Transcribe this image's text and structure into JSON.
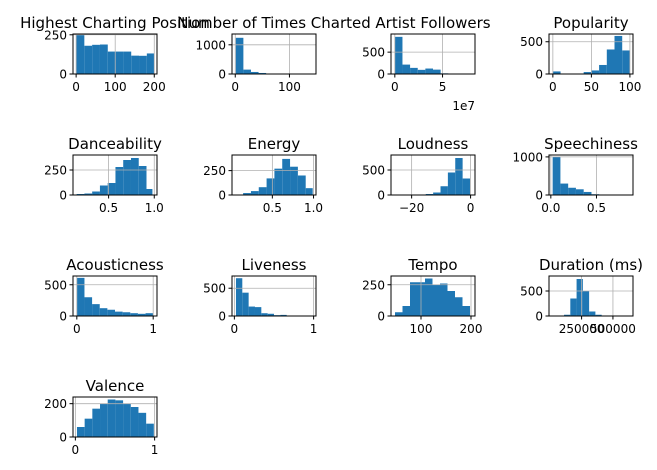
{
  "figure": {
    "background": "#ffffff"
  },
  "chart_data": [
    {
      "type": "bar",
      "title": "Highest Charting Position",
      "bar_color": "#1f77b4",
      "grid": true,
      "xlim": [
        -8,
        207
      ],
      "ylim": [
        0,
        255
      ],
      "xticks": [
        0,
        100,
        200
      ],
      "yticks": [
        0,
        250
      ],
      "bins": [
        [
          1,
          21,
          248
        ],
        [
          21,
          41,
          180
        ],
        [
          41,
          61,
          186
        ],
        [
          61,
          81,
          188
        ],
        [
          81,
          101,
          143
        ],
        [
          101,
          121,
          143
        ],
        [
          121,
          141,
          143
        ],
        [
          141,
          161,
          117
        ],
        [
          161,
          181,
          116
        ],
        [
          181,
          200,
          131
        ]
      ]
    },
    {
      "type": "bar",
      "title": "Number of Times Charted",
      "bar_color": "#1f77b4",
      "grid": true,
      "xlim": [
        -6,
        149
      ],
      "ylim": [
        0,
        1370
      ],
      "xticks": [
        0,
        100
      ],
      "yticks": [
        0,
        1000
      ],
      "bins": [
        [
          1,
          15,
          1240
        ],
        [
          15,
          29,
          150
        ],
        [
          29,
          43,
          70
        ],
        [
          43,
          57,
          35
        ],
        [
          57,
          71,
          15
        ],
        [
          71,
          85,
          5
        ],
        [
          85,
          99,
          3
        ],
        [
          99,
          113,
          2
        ],
        [
          113,
          127,
          1
        ],
        [
          127,
          142,
          2
        ]
      ]
    },
    {
      "type": "bar",
      "title": "Artist Followers",
      "bar_color": "#1f77b4",
      "grid": true,
      "xlim": [
        -0.4,
        8.4
      ],
      "ylim": [
        0,
        915
      ],
      "xticks": [
        0,
        5
      ],
      "yticks": [
        0,
        500
      ],
      "offset_text": "1e7",
      "bins": [
        [
          0,
          0.8,
          850
        ],
        [
          0.8,
          1.6,
          215
        ],
        [
          1.6,
          2.4,
          140
        ],
        [
          2.4,
          3.2,
          95
        ],
        [
          3.2,
          4.0,
          125
        ],
        [
          4.0,
          4.8,
          100
        ],
        [
          4.8,
          5.6,
          15
        ],
        [
          5.6,
          6.4,
          5
        ],
        [
          6.4,
          7.2,
          10
        ],
        [
          7.2,
          8.0,
          5
        ]
      ]
    },
    {
      "type": "bar",
      "title": "Popularity",
      "bar_color": "#1f77b4",
      "grid": true,
      "xlim": [
        -5,
        104
      ],
      "ylim": [
        0,
        620
      ],
      "xticks": [
        0,
        50,
        100
      ],
      "yticks": [
        0,
        500
      ],
      "bins": [
        [
          0,
          10,
          40
        ],
        [
          10,
          20,
          2
        ],
        [
          20,
          30,
          2
        ],
        [
          30,
          40,
          2
        ],
        [
          40,
          50,
          30
        ],
        [
          50,
          60,
          55
        ],
        [
          60,
          70,
          140
        ],
        [
          70,
          80,
          380
        ],
        [
          80,
          90,
          590
        ],
        [
          90,
          100,
          365
        ]
      ]
    },
    {
      "type": "bar",
      "title": "Danceability",
      "bar_color": "#1f77b4",
      "grid": true,
      "xlim": [
        0.11,
        1.03
      ],
      "ylim": [
        0,
        400
      ],
      "xticks": [
        0.5,
        1.0
      ],
      "xtick_labels": [
        "0.5",
        "1.0"
      ],
      "yticks": [
        0,
        250
      ],
      "bins": [
        [
          0.15,
          0.235,
          10
        ],
        [
          0.235,
          0.32,
          15
        ],
        [
          0.32,
          0.405,
          35
        ],
        [
          0.405,
          0.49,
          95
        ],
        [
          0.49,
          0.575,
          120
        ],
        [
          0.575,
          0.66,
          280
        ],
        [
          0.66,
          0.745,
          350
        ],
        [
          0.745,
          0.83,
          370
        ],
        [
          0.83,
          0.915,
          290
        ],
        [
          0.915,
          0.98,
          60
        ]
      ]
    },
    {
      "type": "bar",
      "title": "Energy",
      "bar_color": "#1f77b4",
      "grid": true,
      "xlim": [
        0.01,
        1.03
      ],
      "ylim": [
        0,
        410
      ],
      "xticks": [
        0.5,
        1.0
      ],
      "xtick_labels": [
        "0.5",
        "1.0"
      ],
      "yticks": [
        0,
        250
      ],
      "bins": [
        [
          0.05,
          0.145,
          5
        ],
        [
          0.145,
          0.24,
          20
        ],
        [
          0.24,
          0.335,
          40
        ],
        [
          0.335,
          0.43,
          80
        ],
        [
          0.43,
          0.525,
          170
        ],
        [
          0.525,
          0.62,
          270
        ],
        [
          0.62,
          0.715,
          370
        ],
        [
          0.715,
          0.81,
          290
        ],
        [
          0.81,
          0.905,
          200
        ],
        [
          0.905,
          0.99,
          70
        ]
      ]
    },
    {
      "type": "bar",
      "title": "Loudness",
      "bar_color": "#1f77b4",
      "grid": true,
      "xlim": [
        -27,
        1.5
      ],
      "ylim": [
        0,
        800
      ],
      "xticks": [
        -20,
        0
      ],
      "xtick_labels": [
        "−20",
        "0"
      ],
      "yticks": [
        0,
        500
      ],
      "bins": [
        [
          -25.2,
          -22.7,
          5
        ],
        [
          -22.7,
          -20.2,
          5
        ],
        [
          -20.2,
          -17.7,
          5
        ],
        [
          -17.7,
          -15.2,
          10
        ],
        [
          -15.2,
          -12.7,
          20
        ],
        [
          -12.7,
          -10.2,
          50
        ],
        [
          -10.2,
          -7.7,
          175
        ],
        [
          -7.7,
          -5.2,
          450
        ],
        [
          -5.2,
          -2.7,
          740
        ],
        [
          -2.7,
          -0.2,
          330
        ]
      ]
    },
    {
      "type": "bar",
      "title": "Speechiness",
      "bar_color": "#1f77b4",
      "grid": true,
      "xlim": [
        -0.02,
        0.9
      ],
      "ylim": [
        0,
        1050
      ],
      "xticks": [
        0.0,
        0.5
      ],
      "xtick_labels": [
        "0.0",
        "0.5"
      ],
      "yticks": [
        0,
        1000
      ],
      "bins": [
        [
          0.02,
          0.105,
          1000
        ],
        [
          0.105,
          0.19,
          300
        ],
        [
          0.19,
          0.275,
          190
        ],
        [
          0.275,
          0.36,
          150
        ],
        [
          0.36,
          0.445,
          80
        ],
        [
          0.445,
          0.53,
          20
        ],
        [
          0.53,
          0.615,
          8
        ],
        [
          0.615,
          0.7,
          3
        ],
        [
          0.7,
          0.785,
          2
        ],
        [
          0.785,
          0.87,
          1
        ]
      ]
    },
    {
      "type": "bar",
      "title": "Acousticness",
      "bar_color": "#1f77b4",
      "grid": true,
      "xlim": [
        -0.05,
        1.05
      ],
      "ylim": [
        0,
        640
      ],
      "xticks": [
        0,
        1
      ],
      "yticks": [
        0,
        500
      ],
      "bins": [
        [
          0.0,
          0.1,
          610
        ],
        [
          0.1,
          0.2,
          300
        ],
        [
          0.2,
          0.3,
          190
        ],
        [
          0.3,
          0.4,
          125
        ],
        [
          0.4,
          0.5,
          100
        ],
        [
          0.5,
          0.6,
          70
        ],
        [
          0.6,
          0.7,
          60
        ],
        [
          0.7,
          0.8,
          45
        ],
        [
          0.8,
          0.9,
          35
        ],
        [
          0.9,
          1.0,
          45
        ]
      ]
    },
    {
      "type": "bar",
      "title": "Liveness",
      "bar_color": "#1f77b4",
      "grid": true,
      "xlim": [
        -0.03,
        1.03
      ],
      "ylim": [
        0,
        720
      ],
      "xticks": [
        0,
        1
      ],
      "yticks": [
        0,
        500
      ],
      "bins": [
        [
          0.02,
          0.1,
          680
        ],
        [
          0.1,
          0.18,
          420
        ],
        [
          0.18,
          0.26,
          170
        ],
        [
          0.26,
          0.34,
          160
        ],
        [
          0.34,
          0.42,
          50
        ],
        [
          0.42,
          0.5,
          40
        ],
        [
          0.5,
          0.58,
          15
        ],
        [
          0.58,
          0.66,
          20
        ],
        [
          0.66,
          0.74,
          5
        ],
        [
          0.74,
          0.82,
          3
        ]
      ]
    },
    {
      "type": "bar",
      "title": "Tempo",
      "bar_color": "#1f77b4",
      "grid": true,
      "xlim": [
        40,
        208
      ],
      "ylim": [
        0,
        320
      ],
      "xticks": [
        100,
        200
      ],
      "yticks": [
        0,
        250
      ],
      "bins": [
        [
          48,
          63,
          30
        ],
        [
          63,
          78,
          80
        ],
        [
          78,
          93,
          270
        ],
        [
          93,
          108,
          270
        ],
        [
          108,
          123,
          300
        ],
        [
          123,
          138,
          250
        ],
        [
          138,
          153,
          260
        ],
        [
          153,
          168,
          200
        ],
        [
          168,
          183,
          150
        ],
        [
          183,
          198,
          80
        ]
      ]
    },
    {
      "type": "bar",
      "title": "Duration (ms)",
      "bar_color": "#1f77b4",
      "grid": true,
      "xlim": [
        -10000,
        660000
      ],
      "ylim": [
        0,
        800
      ],
      "xticks": [
        250000,
        500000
      ],
      "yticks": [
        0,
        500
      ],
      "bins": [
        [
          110000,
          160000,
          25
        ],
        [
          160000,
          210000,
          350
        ],
        [
          210000,
          260000,
          740
        ],
        [
          260000,
          310000,
          500
        ],
        [
          310000,
          360000,
          90
        ],
        [
          360000,
          410000,
          25
        ],
        [
          410000,
          460000,
          8
        ],
        [
          460000,
          510000,
          3
        ],
        [
          510000,
          560000,
          1
        ],
        [
          560000,
          610000,
          1
        ]
      ]
    },
    {
      "type": "bar",
      "title": "Valence",
      "bar_color": "#1f77b4",
      "grid": true,
      "xlim": [
        -0.03,
        1.03
      ],
      "ylim": [
        0,
        240
      ],
      "xticks": [
        0,
        1
      ],
      "yticks": [
        0,
        200
      ],
      "bins": [
        [
          0.02,
          0.117,
          60
        ],
        [
          0.117,
          0.214,
          110
        ],
        [
          0.214,
          0.311,
          170
        ],
        [
          0.311,
          0.408,
          200
        ],
        [
          0.408,
          0.505,
          225
        ],
        [
          0.505,
          0.602,
          220
        ],
        [
          0.602,
          0.699,
          200
        ],
        [
          0.699,
          0.796,
          180
        ],
        [
          0.796,
          0.893,
          145
        ],
        [
          0.893,
          0.99,
          80
        ]
      ]
    }
  ]
}
